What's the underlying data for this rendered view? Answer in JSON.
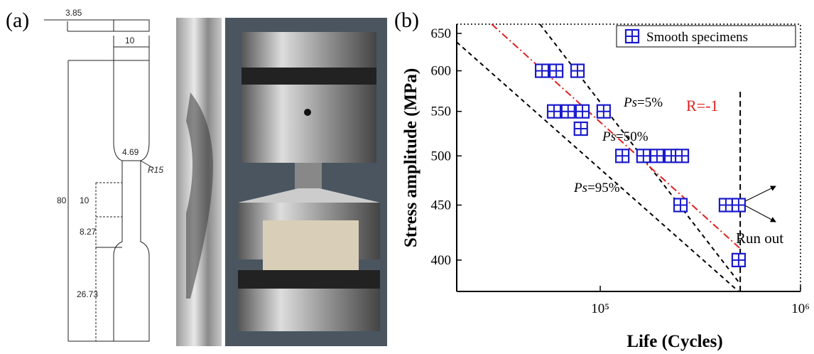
{
  "drawing": {
    "panel_label": "(a)",
    "dimensions": [
      "3.85",
      "10",
      "4.69",
      "R15",
      "80",
      "10",
      "8.27",
      "26.73"
    ]
  },
  "chart_data": {
    "type": "scatter",
    "panel_label": "(b)",
    "xlabel": "Life (Cycles)",
    "ylabel": "Stress amplitude (MPa)",
    "xlog": true,
    "ylog": true,
    "xlim": [
      19200,
      1000000
    ],
    "ylim": [
      374,
      663
    ],
    "xticks": [
      {
        "value": 100000,
        "label": "10⁵"
      },
      {
        "value": 1000000,
        "label": "10⁶"
      }
    ],
    "yticks": [
      400,
      450,
      500,
      550,
      600,
      650
    ],
    "legend": "upper right",
    "series": [
      {
        "name": "Smooth specimens",
        "color": "#1a1acc",
        "x": [
          51200,
          60300,
          77000,
          58800,
          69100,
          81500,
          104000,
          80000,
          128900,
          164300,
          192000,
          226300,
          255800,
          251600,
          424000,
          491000,
          491000
        ],
        "values": [
          600,
          600,
          600,
          550,
          550,
          550,
          550,
          530,
          500,
          500,
          500,
          500,
          500,
          450,
          450,
          450,
          400
        ]
      }
    ],
    "lines": [
      {
        "symbol": "Ps",
        "label": "=5%",
        "color": "#000000",
        "x": [
          50000,
          500000
        ],
        "values": [
          663,
          380
        ]
      },
      {
        "symbol": "Ps",
        "label": "=50%",
        "color": "#e02020",
        "x": [
          28700,
          500000
        ],
        "values": [
          663,
          410
        ]
      },
      {
        "symbol": "Ps",
        "label": "=95%",
        "color": "#000000",
        "x": [
          19200,
          491000
        ],
        "values": [
          638,
          374
        ]
      }
    ],
    "runout_line": {
      "x": [
        500000,
        500000
      ],
      "values": [
        374,
        577
      ]
    },
    "annotations": [
      "R=-1",
      "Run out"
    ]
  }
}
